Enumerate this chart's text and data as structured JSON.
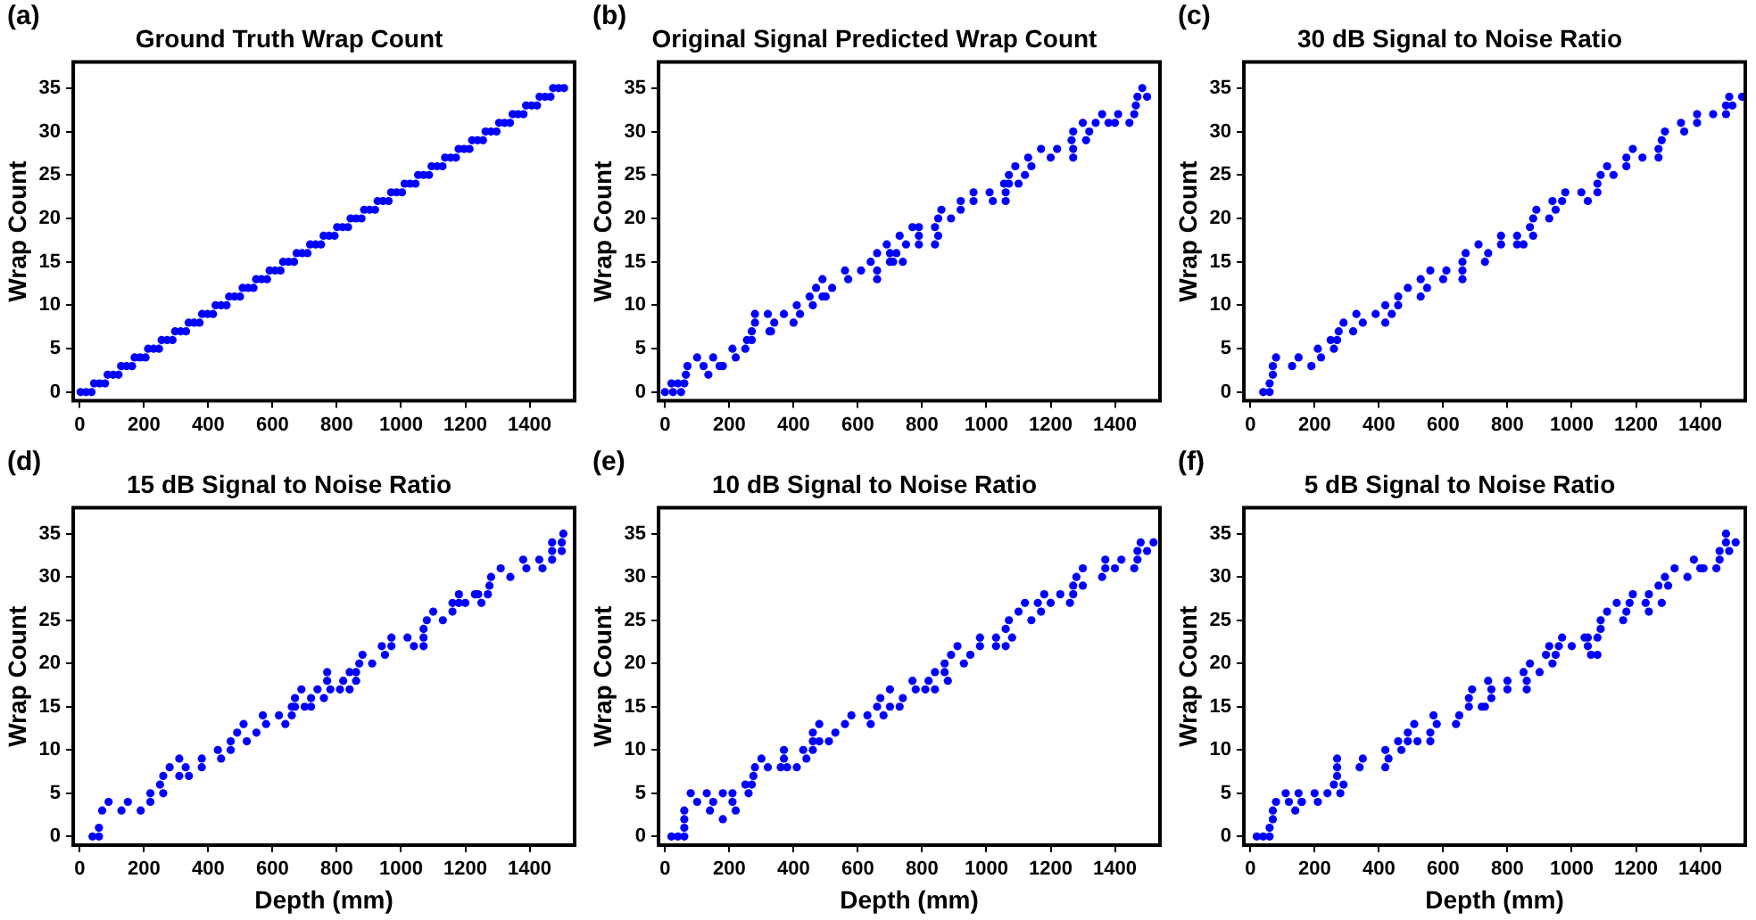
{
  "chart_data": [
    {
      "type": "scatter",
      "title": "Ground Truth Wrap Count",
      "ylabel": "Wrap Count",
      "annotations": [
        "(a)"
      ],
      "color": "#0000ff",
      "marker": "circle",
      "xlim": [
        -20,
        1540
      ],
      "ylim": [
        -1,
        38
      ],
      "xticks": [
        0,
        200,
        400,
        600,
        800,
        1000,
        1200,
        1400
      ],
      "yticks": [
        0,
        5,
        10,
        15,
        20,
        25,
        30,
        35
      ],
      "x": [
        3,
        20,
        37,
        45,
        62,
        79,
        87,
        104,
        121,
        129,
        146,
        163,
        171,
        188,
        205,
        213,
        230,
        247,
        255,
        272,
        289,
        297,
        314,
        331,
        339,
        356,
        373,
        381,
        398,
        415,
        423,
        440,
        457,
        465,
        482,
        499,
        507,
        524,
        541,
        549,
        566,
        583,
        591,
        608,
        625,
        633,
        650,
        667,
        675,
        692,
        709,
        717,
        734,
        751,
        759,
        776,
        793,
        801,
        818,
        835,
        843,
        860,
        877,
        885,
        902,
        919,
        927,
        944,
        961,
        969,
        986,
        1003,
        1011,
        1028,
        1045,
        1053,
        1070,
        1087,
        1095,
        1112,
        1129,
        1137,
        1154,
        1171,
        1179,
        1196,
        1213,
        1221,
        1238,
        1255,
        1263,
        1280,
        1297,
        1305,
        1322,
        1339,
        1347,
        1364,
        1381,
        1389,
        1406,
        1423,
        1431,
        1448,
        1465,
        1473,
        1490,
        1507
      ],
      "values": [
        0,
        0,
        0,
        1,
        1,
        1,
        2,
        2,
        2,
        3,
        3,
        3,
        4,
        4,
        4,
        5,
        5,
        5,
        6,
        6,
        6,
        7,
        7,
        7,
        8,
        8,
        8,
        9,
        9,
        9,
        10,
        10,
        10,
        11,
        11,
        11,
        12,
        12,
        12,
        13,
        13,
        13,
        14,
        14,
        14,
        15,
        15,
        15,
        16,
        16,
        16,
        17,
        17,
        17,
        18,
        18,
        18,
        19,
        19,
        19,
        20,
        20,
        20,
        21,
        21,
        21,
        22,
        22,
        22,
        23,
        23,
        23,
        24,
        24,
        24,
        25,
        25,
        25,
        26,
        26,
        26,
        27,
        27,
        27,
        28,
        28,
        28,
        29,
        29,
        29,
        30,
        30,
        30,
        31,
        31,
        31,
        32,
        32,
        32,
        33,
        33,
        33,
        34,
        34,
        34,
        35,
        35,
        35
      ]
    },
    {
      "type": "scatter",
      "title": "Original Signal Predicted Wrap Count",
      "ylabel": "Wrap Count",
      "annotations": [
        "(b)"
      ],
      "color": "#0000ff",
      "marker": "circle",
      "xlim": [
        -20,
        1540
      ],
      "ylim": [
        -1,
        38
      ],
      "xticks": [
        0,
        200,
        400,
        600,
        800,
        1000,
        1200,
        1400
      ],
      "yticks": [
        0,
        5,
        10,
        15,
        20,
        25,
        30,
        35
      ],
      "x": [
        0,
        25,
        50,
        20,
        40,
        60,
        65,
        70,
        120,
        170,
        100,
        150,
        220,
        135,
        180,
        210,
        250,
        255,
        270,
        270,
        330,
        280,
        340,
        400,
        280,
        320,
        370,
        420,
        325,
        410,
        460,
        450,
        490,
        470,
        520,
        500,
        490,
        570,
        660,
        560,
        610,
        660,
        640,
        700,
        660,
        700,
        690,
        750,
        710,
        740,
        720,
        730,
        790,
        850,
        770,
        790,
        840,
        790,
        840,
        850,
        890,
        860,
        920,
        920,
        960,
        960,
        1010,
        1060,
        1020,
        1060,
        1055,
        1070,
        1070,
        1120,
        1100,
        1090,
        1140,
        1130,
        1200,
        1270,
        1170,
        1220,
        1270,
        1265,
        1270,
        1320,
        1310,
        1300,
        1340,
        1380,
        1360,
        1410,
        1460,
        1400,
        1445,
        1465,
        1470,
        1500,
        1485
      ],
      "values": [
        0,
        0,
        0,
        1,
        1,
        1,
        2,
        3,
        3,
        3,
        4,
        4,
        4,
        2,
        3,
        5,
        5,
        6,
        6,
        7,
        7,
        8,
        8,
        8,
        9,
        9,
        9,
        9,
        7,
        10,
        10,
        11,
        11,
        12,
        12,
        11,
        13,
        13,
        13,
        14,
        14,
        14,
        15,
        15,
        16,
        16,
        17,
        17,
        15,
        15,
        16,
        18,
        18,
        18,
        19,
        19,
        19,
        17,
        17,
        20,
        20,
        21,
        21,
        22,
        22,
        23,
        23,
        23,
        22,
        22,
        24,
        24,
        25,
        25,
        24,
        26,
        26,
        27,
        27,
        27,
        28,
        28,
        28,
        29,
        30,
        30,
        29,
        31,
        31,
        31,
        32,
        32,
        32,
        31,
        31,
        33,
        34,
        34,
        35
      ]
    },
    {
      "type": "scatter",
      "title": "30 dB Signal to Noise Ratio",
      "ylabel": "Wrap Count",
      "annotations": [
        "(c)"
      ],
      "color": "#0000ff",
      "marker": "circle",
      "xlim": [
        -20,
        1540
      ],
      "ylim": [
        -1,
        38
      ],
      "xticks": [
        0,
        200,
        400,
        600,
        800,
        1000,
        1200,
        1400
      ],
      "yticks": [
        0,
        5,
        10,
        15,
        20,
        25,
        30,
        35
      ],
      "x": [
        40,
        60,
        60,
        70,
        70,
        130,
        190,
        80,
        150,
        220,
        210,
        260,
        250,
        270,
        275,
        320,
        290,
        350,
        420,
        330,
        390,
        440,
        420,
        460,
        460,
        530,
        490,
        550,
        530,
        600,
        660,
        560,
        610,
        660,
        660,
        730,
        670,
        740,
        710,
        780,
        780,
        830,
        880,
        830,
        850,
        870,
        880,
        930,
        890,
        950,
        940,
        970,
        980,
        1030,
        1080,
        1050,
        1080,
        1090,
        1130,
        1110,
        1170,
        1170,
        1220,
        1270,
        1190,
        1270,
        1280,
        1290,
        1350,
        1340,
        1390,
        1390,
        1440,
        1480,
        1480,
        1500,
        1490,
        1530
      ],
      "values": [
        0,
        0,
        1,
        2,
        3,
        3,
        3,
        4,
        4,
        4,
        5,
        5,
        6,
        6,
        7,
        7,
        8,
        8,
        8,
        9,
        9,
        9,
        10,
        10,
        11,
        11,
        12,
        12,
        13,
        13,
        13,
        14,
        14,
        14,
        15,
        15,
        16,
        16,
        17,
        17,
        18,
        18,
        18,
        17,
        17,
        19,
        20,
        20,
        21,
        21,
        22,
        22,
        23,
        23,
        23,
        22,
        24,
        25,
        25,
        26,
        26,
        27,
        27,
        27,
        28,
        28,
        29,
        30,
        30,
        31,
        31,
        32,
        32,
        32,
        33,
        33,
        34,
        34
      ]
    },
    {
      "type": "scatter",
      "title": "15 dB Signal to Noise Ratio",
      "xlabel": "Depth (mm)",
      "ylabel": "Wrap Count",
      "annotations": [
        "(d)"
      ],
      "color": "#0000ff",
      "marker": "circle",
      "xlim": [
        -20,
        1540
      ],
      "ylim": [
        -1,
        38
      ],
      "xticks": [
        0,
        200,
        400,
        600,
        800,
        1000,
        1200,
        1400
      ],
      "yticks": [
        0,
        5,
        10,
        15,
        20,
        25,
        30,
        35
      ],
      "x": [
        40,
        60,
        60,
        70,
        130,
        190,
        90,
        150,
        220,
        220,
        260,
        250,
        260,
        310,
        340,
        280,
        330,
        380,
        310,
        380,
        440,
        430,
        470,
        470,
        520,
        490,
        550,
        510,
        580,
        640,
        570,
        620,
        660,
        660,
        670,
        700,
        720,
        670,
        720,
        760,
        690,
        740,
        780,
        770,
        770,
        820,
        860,
        810,
        840,
        840,
        860,
        870,
        910,
        880,
        950,
        940,
        970,
        970,
        1020,
        1070,
        1040,
        1070,
        1070,
        1080,
        1130,
        1100,
        1160,
        1160,
        1180,
        1180,
        1230,
        1200,
        1250,
        1240,
        1270,
        1275,
        1280,
        1340,
        1310,
        1390,
        1380,
        1430,
        1470,
        1440,
        1470,
        1500,
        1470,
        1500,
        1505
      ],
      "values": [
        0,
        0,
        1,
        3,
        3,
        3,
        4,
        4,
        4,
        5,
        5,
        6,
        7,
        7,
        7,
        8,
        8,
        8,
        9,
        9,
        9,
        10,
        10,
        11,
        11,
        12,
        12,
        13,
        13,
        13,
        14,
        14,
        14,
        15,
        15,
        15,
        15,
        16,
        16,
        16,
        17,
        17,
        17,
        19,
        18,
        18,
        18,
        17,
        17,
        19,
        19,
        20,
        20,
        21,
        21,
        22,
        22,
        23,
        23,
        23,
        22,
        22,
        24,
        25,
        25,
        26,
        26,
        27,
        27,
        28,
        28,
        27,
        27,
        28,
        28,
        29,
        30,
        30,
        31,
        31,
        32,
        32,
        32,
        31,
        33,
        33,
        34,
        34,
        35
      ]
    },
    {
      "type": "scatter",
      "title": "10 dB Signal to Noise Ratio",
      "xlabel": "Depth (mm)",
      "ylabel": "Wrap Count",
      "annotations": [
        "(e)"
      ],
      "color": "#0000ff",
      "marker": "circle",
      "xlim": [
        -20,
        1540
      ],
      "ylim": [
        -1,
        38
      ],
      "xticks": [
        0,
        200,
        400,
        600,
        800,
        1000,
        1200,
        1400
      ],
      "yticks": [
        0,
        5,
        10,
        15,
        20,
        25,
        30,
        35
      ],
      "x": [
        20,
        40,
        60,
        60,
        60,
        60,
        140,
        220,
        80,
        130,
        180,
        180,
        100,
        150,
        210,
        210,
        260,
        250,
        270,
        275,
        280,
        320,
        360,
        300,
        370,
        440,
        370,
        380,
        410,
        430,
        460,
        460,
        480,
        510,
        460,
        530,
        480,
        560,
        640,
        580,
        630,
        680,
        660,
        670,
        740,
        700,
        730,
        700,
        780,
        770,
        820,
        880,
        810,
        840,
        840,
        870,
        870,
        930,
        890,
        950,
        910,
        980,
        980,
        1030,
        1080,
        1030,
        1060,
        1060,
        1070,
        1140,
        1100,
        1170,
        1120,
        1160,
        1180,
        1230,
        1270,
        1200,
        1260,
        1270,
        1300,
        1280,
        1360,
        1300,
        1370,
        1370,
        1420,
        1470,
        1400,
        1460,
        1470,
        1500,
        1480,
        1520
      ],
      "values": [
        0,
        0,
        0,
        1,
        2,
        3,
        3,
        3,
        5,
        5,
        5,
        2,
        4,
        4,
        4,
        5,
        5,
        6,
        6,
        7,
        8,
        8,
        8,
        9,
        9,
        9,
        10,
        8,
        8,
        10,
        10,
        11,
        11,
        11,
        12,
        12,
        13,
        13,
        13,
        14,
        14,
        14,
        15,
        16,
        16,
        15,
        15,
        17,
        17,
        18,
        18,
        18,
        17,
        17,
        19,
        19,
        20,
        20,
        21,
        21,
        22,
        22,
        23,
        23,
        23,
        22,
        22,
        24,
        25,
        25,
        26,
        26,
        27,
        27,
        28,
        28,
        28,
        27,
        27,
        29,
        29,
        30,
        30,
        31,
        31,
        32,
        32,
        32,
        31,
        31,
        33,
        33,
        34,
        34
      ]
    },
    {
      "type": "scatter",
      "title": "5 dB Signal to Noise Ratio",
      "xlabel": "Depth (mm)",
      "ylabel": "Wrap Count",
      "annotations": [
        "(f)"
      ],
      "color": "#0000ff",
      "marker": "circle",
      "xlim": [
        -20,
        1540
      ],
      "ylim": [
        -1,
        38
      ],
      "xticks": [
        0,
        200,
        400,
        600,
        800,
        1000,
        1200,
        1400
      ],
      "yticks": [
        0,
        5,
        10,
        15,
        20,
        25,
        30,
        35
      ],
      "x": [
        20,
        40,
        60,
        60,
        70,
        70,
        80,
        120,
        160,
        110,
        150,
        200,
        140,
        160,
        210,
        240,
        280,
        260,
        290,
        270,
        270,
        340,
        420,
        270,
        350,
        430,
        420,
        470,
        460,
        490,
        490,
        560,
        520,
        560,
        510,
        580,
        640,
        570,
        650,
        680,
        720,
        730,
        680,
        750,
        690,
        750,
        800,
        740,
        800,
        860,
        860,
        850,
        900,
        870,
        940,
        920,
        950,
        930,
        960,
        970,
        1040,
        1000,
        1050,
        1060,
        1080,
        1050,
        1080,
        1090,
        1090,
        1160,
        1110,
        1170,
        1140,
        1190,
        1240,
        1180,
        1230,
        1280,
        1240,
        1270,
        1300,
        1290,
        1360,
        1320,
        1410,
        1380,
        1460,
        1400,
        1450,
        1460,
        1490,
        1480,
        1510,
        1480
      ],
      "values": [
        0,
        0,
        0,
        1,
        2,
        3,
        4,
        4,
        4,
        5,
        5,
        5,
        3,
        4,
        4,
        5,
        5,
        6,
        6,
        7,
        8,
        8,
        8,
        9,
        9,
        9,
        10,
        10,
        11,
        11,
        12,
        12,
        11,
        11,
        13,
        13,
        13,
        14,
        14,
        15,
        15,
        15,
        16,
        16,
        17,
        17,
        17,
        18,
        18,
        18,
        17,
        19,
        19,
        20,
        20,
        21,
        21,
        22,
        22,
        23,
        23,
        22,
        22,
        21,
        21,
        23,
        23,
        24,
        25,
        25,
        26,
        26,
        27,
        28,
        28,
        27,
        27,
        27,
        26,
        29,
        29,
        30,
        30,
        31,
        31,
        32,
        32,
        31,
        31,
        33,
        33,
        34,
        34,
        35
      ]
    }
  ]
}
